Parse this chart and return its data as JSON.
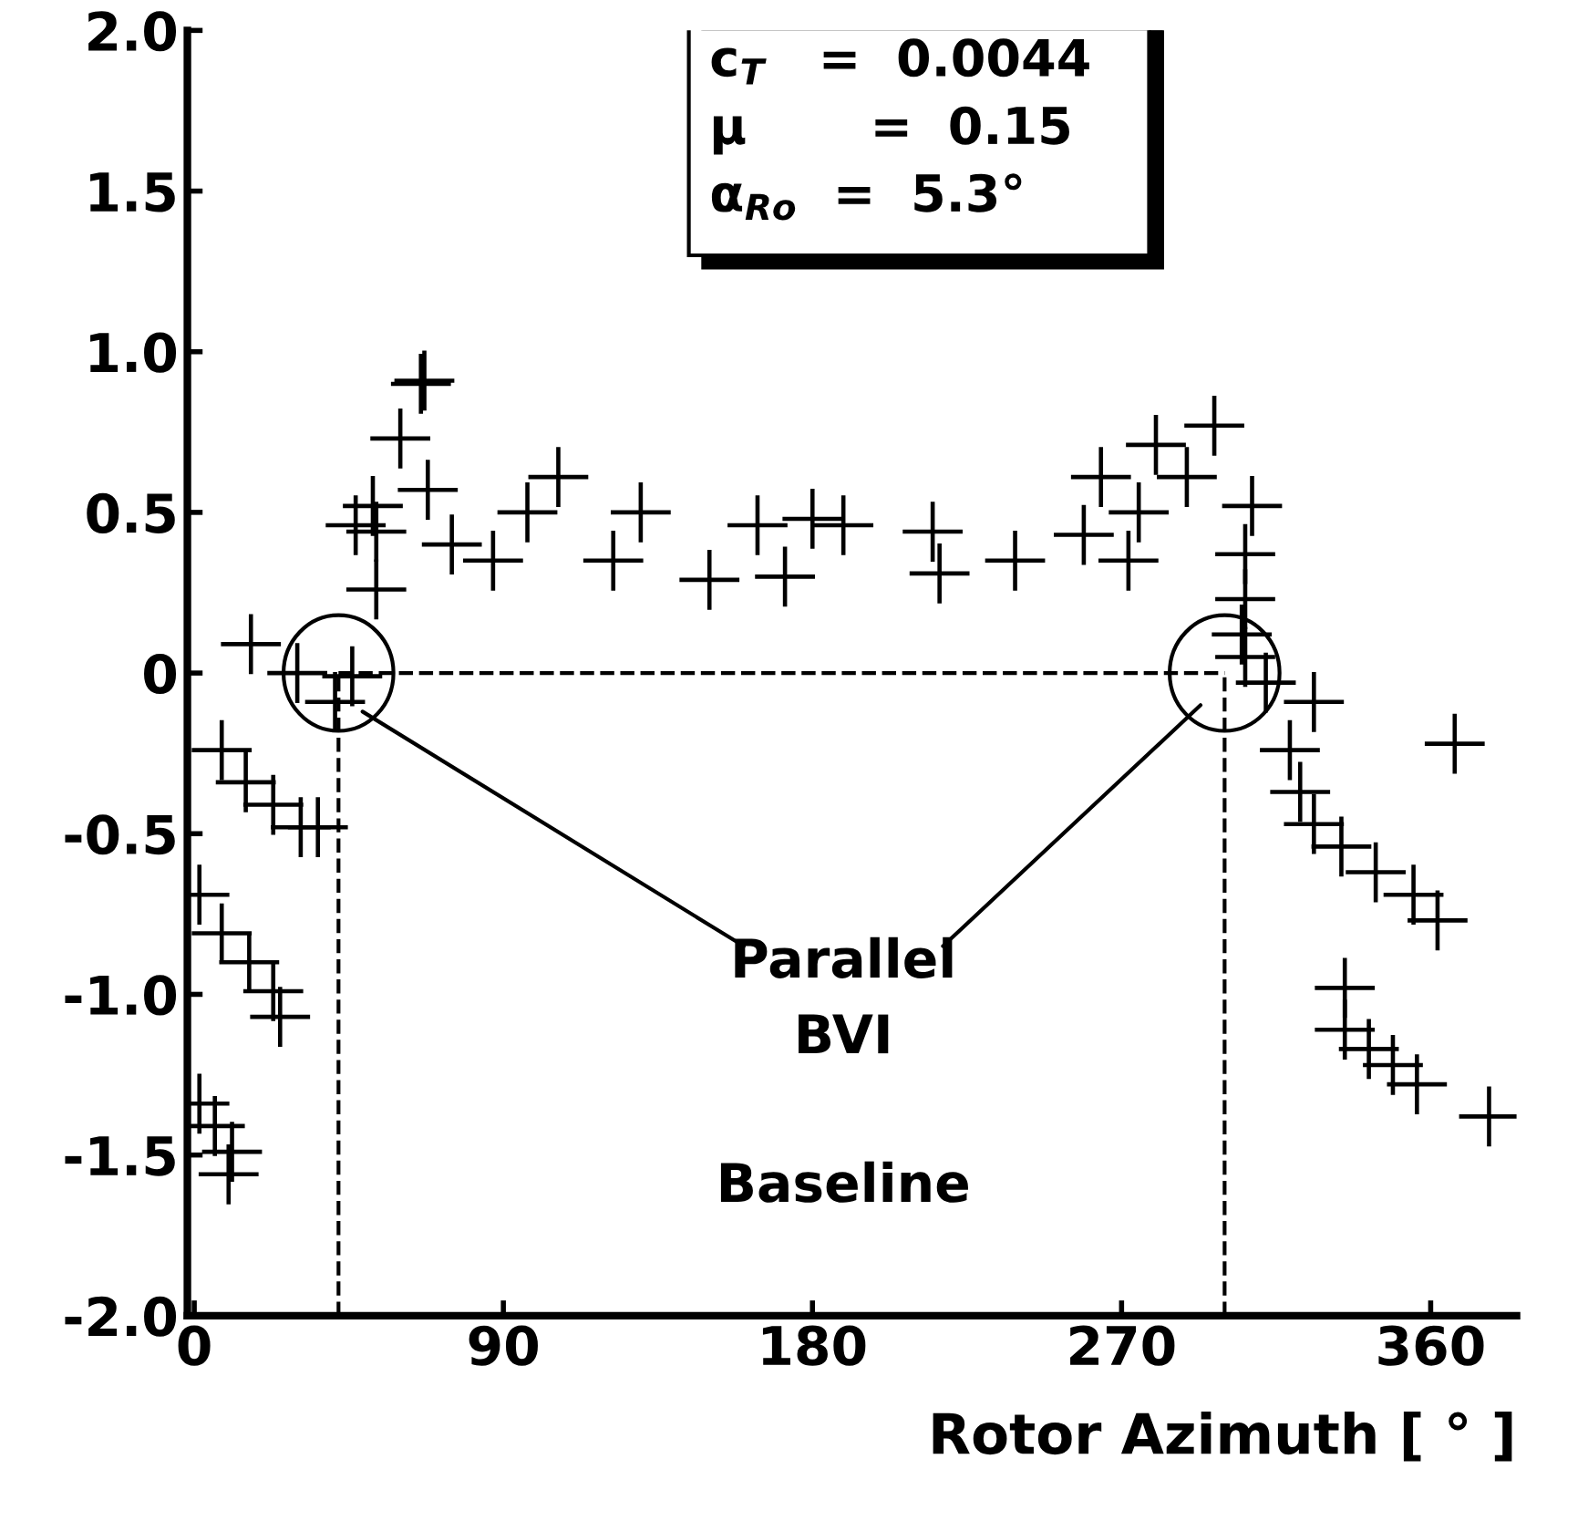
{
  "chart_data": {
    "type": "scatter",
    "xlabel": "Rotor Azimuth [ ° ]",
    "x": [
      1.5,
      6,
      10,
      11,
      1.5,
      8,
      16,
      23,
      25,
      8,
      15,
      23,
      31,
      36,
      16.5,
      30,
      41,
      46,
      53,
      53,
      52,
      47,
      66,
      60,
      68,
      75,
      67,
      106,
      130,
      164,
      97,
      87,
      122,
      150,
      172,
      180,
      189,
      215,
      217,
      239,
      259,
      275,
      289,
      297,
      264,
      280,
      272,
      308,
      306,
      306,
      305,
      306,
      312,
      326,
      319,
      322,
      326,
      334,
      344,
      355,
      362,
      335,
      335,
      342,
      349,
      356,
      377,
      367
    ],
    "series": [
      {
        "color": "#000000",
        "values": [
          -1.34,
          -1.41,
          -1.56,
          -1.49,
          -0.69,
          -0.81,
          -0.9,
          -0.99,
          -1.07,
          -0.24,
          -0.34,
          -0.41,
          -0.48,
          -0.48,
          0.09,
          0.0,
          -0.09,
          -0.01,
          0.26,
          0.44,
          0.52,
          0.46,
          0.9,
          0.73,
          0.57,
          0.4,
          0.91,
          0.61,
          0.5,
          0.46,
          0.5,
          0.35,
          0.35,
          0.29,
          0.3,
          0.48,
          0.46,
          0.44,
          0.31,
          0.35,
          0.43,
          0.5,
          0.61,
          0.77,
          0.61,
          0.71,
          0.35,
          0.52,
          0.37,
          0.23,
          0.12,
          0.05,
          -0.03,
          -0.09,
          -0.24,
          -0.37,
          -0.47,
          -0.54,
          -0.62,
          -0.69,
          -0.77,
          -0.98,
          -1.11,
          -1.17,
          -1.22,
          -1.28,
          -1.38,
          -0.22
        ]
      }
    ],
    "marker": "cross",
    "xlim": [
      -2,
      385
    ],
    "xticks": [
      0,
      90,
      180,
      270,
      360
    ],
    "ylim": [
      -2.0,
      2.0
    ],
    "yticks": [
      {
        "value": -2.0,
        "label": "-2.0"
      },
      {
        "value": -1.5,
        "label": "-1.5"
      },
      {
        "value": -1.0,
        "label": "-1.0"
      },
      {
        "value": -0.5,
        "label": "-0.5"
      },
      0,
      {
        "value": 0.5,
        "label": "0.5"
      },
      {
        "value": 1.0,
        "label": "1.0"
      },
      {
        "value": 1.5,
        "label": "1.5"
      },
      {
        "value": 2.0,
        "label": "2.0"
      }
    ],
    "ref_lines": [
      {
        "axis": "x",
        "value": 42,
        "line_style": "dashed",
        "color": "#000000"
      },
      {
        "axis": "x",
        "value": 300,
        "line_style": "dashed",
        "color": "#000000"
      },
      {
        "axis": "y",
        "value": 0,
        "line_style": "dashed",
        "color": "#000000"
      }
    ],
    "annotations": [
      "c$_{T}$   =  0.0044",
      "μ       =  0.15",
      "α$_{Ro}$  =  5.3°",
      "Parallel\nBVI",
      "Baseline"
    ],
    "grid": false
  }
}
